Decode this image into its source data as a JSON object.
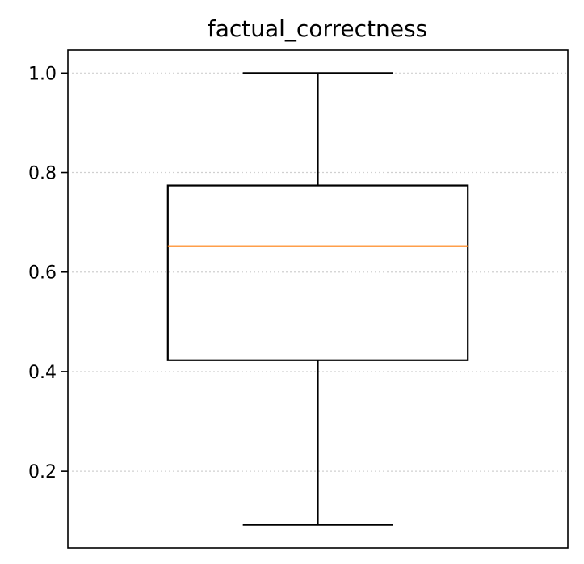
{
  "chart_data": {
    "type": "box",
    "title": "factual_correctness",
    "xlabel": "",
    "ylabel": "",
    "ylim": [
      0.046,
      1.046
    ],
    "yticks": [
      0.2,
      0.4,
      0.6,
      0.8,
      1.0
    ],
    "ytick_labels": [
      "0.2",
      "0.4",
      "0.6",
      "0.8",
      "1.0"
    ],
    "grid": {
      "y": true,
      "x": false,
      "style": "dotted"
    },
    "box": {
      "whisker_low": 0.092,
      "q1": 0.423,
      "median": 0.652,
      "q3": 0.774,
      "whisker_high": 1.0
    },
    "colors": {
      "box": "#000000",
      "median": "#ff7f0e",
      "grid": "#d0d0d0"
    }
  }
}
